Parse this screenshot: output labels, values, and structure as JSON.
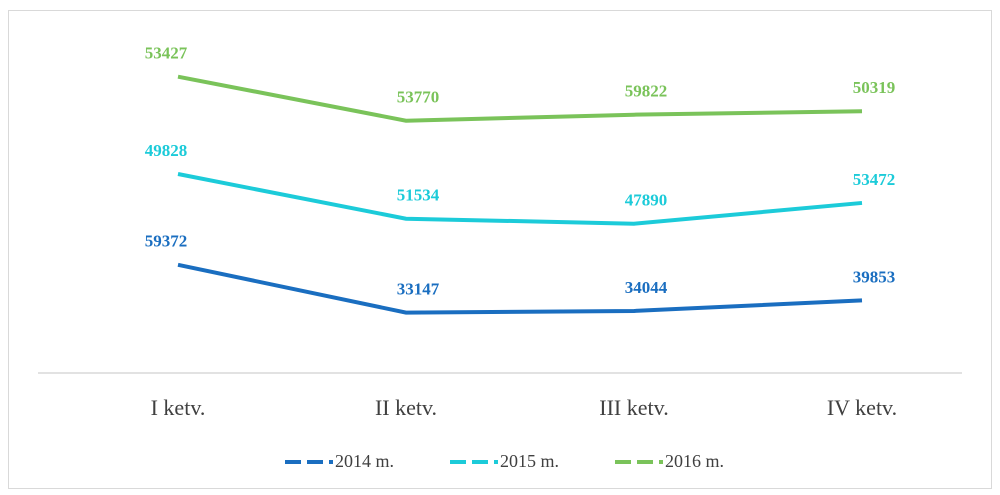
{
  "chart_data": {
    "type": "line",
    "stacked": true,
    "categories": [
      "I ketv.",
      "II ketv.",
      "III ketv.",
      "IV ketv."
    ],
    "series": [
      {
        "name": "2014 m.",
        "color": "#1a6ec0",
        "values": [
          59372,
          33147,
          34044,
          39853
        ]
      },
      {
        "name": "2015 m.",
        "color": "#1ccbd9",
        "values": [
          49828,
          51534,
          47890,
          53472
        ]
      },
      {
        "name": "2016 m.",
        "color": "#7ac35a",
        "values": [
          53427,
          53770,
          59822,
          50319
        ]
      }
    ],
    "ylim": [
      0,
      180000
    ],
    "legend": "bottom"
  }
}
